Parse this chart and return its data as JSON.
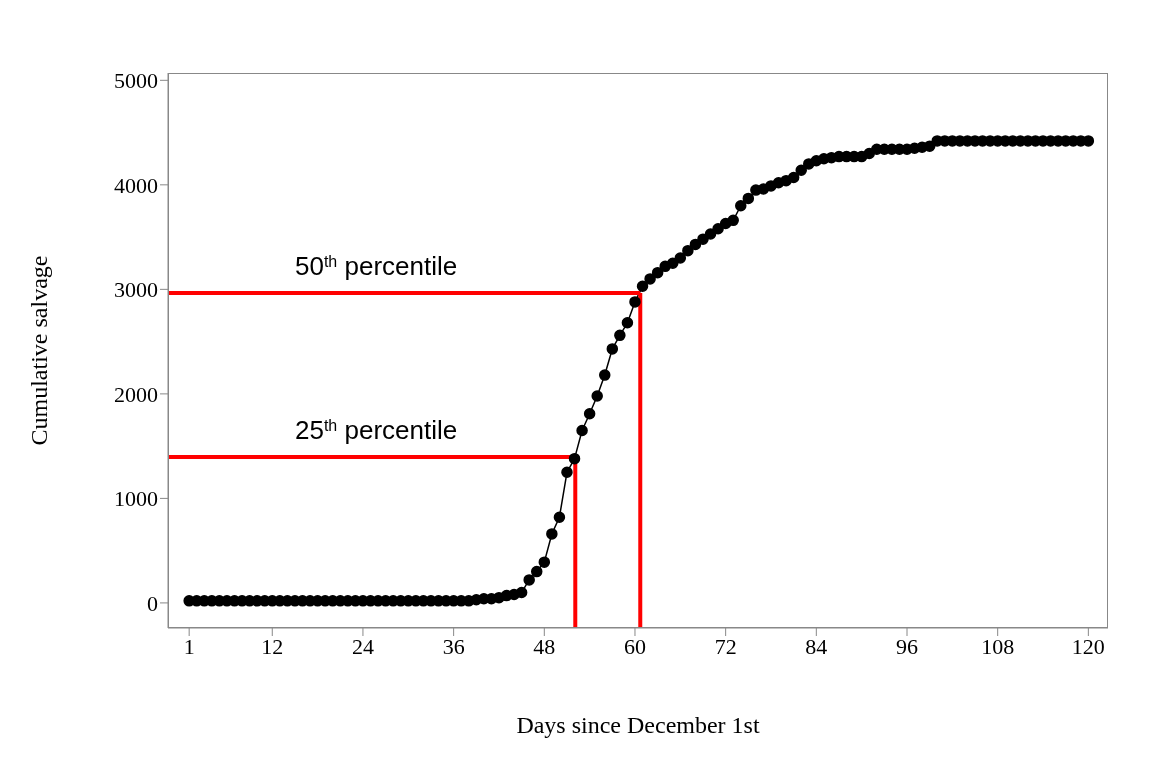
{
  "chart_data": {
    "type": "line",
    "xlabel": "Days since December 1st",
    "ylabel": "Cumulative salvage",
    "x": [
      1,
      2,
      3,
      4,
      5,
      6,
      7,
      8,
      9,
      10,
      11,
      12,
      13,
      14,
      15,
      16,
      17,
      18,
      19,
      20,
      21,
      22,
      23,
      24,
      25,
      26,
      27,
      28,
      29,
      30,
      31,
      32,
      33,
      34,
      35,
      36,
      37,
      38,
      39,
      40,
      41,
      42,
      43,
      44,
      45,
      46,
      47,
      48,
      49,
      50,
      51,
      52,
      53,
      54,
      55,
      56,
      57,
      58,
      59,
      60,
      61,
      62,
      63,
      64,
      65,
      66,
      67,
      68,
      69,
      70,
      71,
      72,
      73,
      74,
      75,
      76,
      77,
      78,
      79,
      80,
      81,
      82,
      83,
      84,
      85,
      86,
      87,
      88,
      89,
      90,
      91,
      92,
      93,
      94,
      95,
      96,
      97,
      98,
      99,
      100,
      101,
      102,
      103,
      104,
      105,
      106,
      107,
      108,
      109,
      110,
      111,
      112,
      113,
      114,
      115,
      116,
      117,
      118,
      119,
      120
    ],
    "series": [
      {
        "color": "#000000",
        "marker": "circle",
        "values": [
          20,
          20,
          20,
          20,
          20,
          20,
          20,
          20,
          20,
          20,
          20,
          20,
          20,
          20,
          20,
          20,
          20,
          20,
          20,
          20,
          20,
          20,
          20,
          20,
          20,
          20,
          20,
          20,
          20,
          20,
          20,
          20,
          20,
          20,
          20,
          20,
          20,
          20,
          30,
          40,
          40,
          50,
          70,
          80,
          100,
          220,
          300,
          390,
          660,
          820,
          1250,
          1380,
          1650,
          1810,
          1980,
          2180,
          2430,
          2560,
          2680,
          2880,
          3030,
          3100,
          3160,
          3220,
          3250,
          3300,
          3370,
          3430,
          3480,
          3530,
          3580,
          3630,
          3660,
          3800,
          3870,
          3950,
          3960,
          3990,
          4020,
          4040,
          4070,
          4140,
          4200,
          4230,
          4250,
          4260,
          4270,
          4270,
          4270,
          4270,
          4300,
          4340,
          4340,
          4340,
          4340,
          4340,
          4350,
          4360,
          4370,
          4420,
          4420,
          4420,
          4420,
          4420,
          4420,
          4420,
          4420,
          4420,
          4420,
          4420,
          4420,
          4420,
          4420,
          4420,
          4420,
          4420,
          4420,
          4420,
          4420,
          4420
        ]
      }
    ],
    "xlim": [
      -1.8,
      122.6
    ],
    "xticks": [
      1,
      12,
      24,
      36,
      48,
      60,
      72,
      84,
      96,
      108,
      120
    ],
    "ylim": [
      -240,
      5070
    ],
    "yticks": [
      0,
      1000,
      2000,
      3000,
      4000,
      5000
    ],
    "grid": false,
    "legend": false,
    "ref_lines": [
      {
        "axis": "y",
        "value": 2965,
        "label": "50$^{th}$ percentile",
        "color": "#ff0000"
      },
      {
        "axis": "x",
        "value": 60.7,
        "color": "#ff0000"
      },
      {
        "axis": "y",
        "value": 1395,
        "label": "25$^{th}$ percentile",
        "color": "#ff0000"
      },
      {
        "axis": "x",
        "value": 52.1,
        "color": "#ff0000"
      }
    ]
  }
}
